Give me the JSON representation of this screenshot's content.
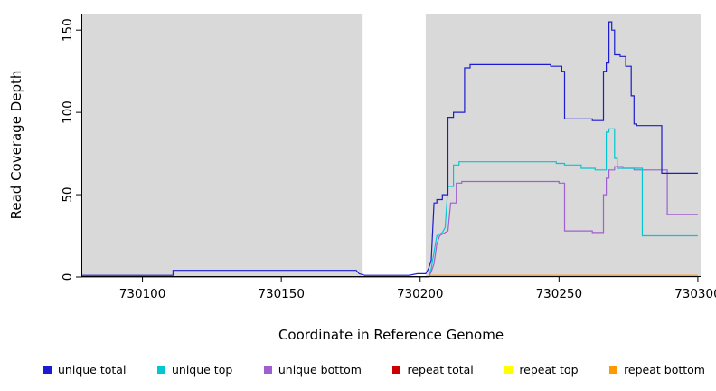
{
  "chart": {
    "type": "line",
    "title": "",
    "xlabel": "Coordinate in Reference Genome",
    "ylabel": "Read Coverage Depth",
    "x_domain": [
      730078,
      730301
    ],
    "y_domain": [
      0,
      160
    ],
    "x_ticks": [
      730100,
      730150,
      730200,
      730250,
      730300
    ],
    "y_ticks": [
      0,
      50,
      100,
      150
    ],
    "plot_background": "#ffffff",
    "grid": false,
    "shaded_regions": [
      {
        "x_start": 730078,
        "x_end": 730179,
        "color": "#d9d9d9"
      },
      {
        "x_start": 730202,
        "x_end": 730301,
        "color": "#d9d9d9"
      }
    ],
    "top_border_segment": [
      730179,
      730202
    ],
    "series": [
      {
        "name": "repeat total",
        "color": "#cc0000",
        "points": [
          [
            730078,
            0
          ],
          [
            730300,
            0
          ]
        ]
      },
      {
        "name": "repeat top",
        "color": "#ffff00",
        "points": [
          [
            730078,
            0
          ],
          [
            730300,
            0
          ]
        ]
      },
      {
        "name": "repeat bottom",
        "color": "#ff9900",
        "points": [
          [
            730078,
            0
          ],
          [
            730202,
            0
          ],
          [
            730204,
            1
          ],
          [
            730300,
            1
          ]
        ]
      },
      {
        "name": "unique bottom",
        "color": "#a05fd0",
        "points": [
          [
            730078,
            0
          ],
          [
            730203,
            0
          ],
          [
            730204,
            3
          ],
          [
            730205,
            8
          ],
          [
            730206,
            20
          ],
          [
            730207,
            25
          ],
          [
            730209,
            27
          ],
          [
            730210,
            28
          ],
          [
            730211,
            45
          ],
          [
            730213,
            45
          ],
          [
            730213,
            57
          ],
          [
            730215,
            57
          ],
          [
            730215,
            58
          ],
          [
            730250,
            58
          ],
          [
            730250,
            57
          ],
          [
            730252,
            57
          ],
          [
            730252,
            28
          ],
          [
            730262,
            28
          ],
          [
            730262,
            27
          ],
          [
            730266,
            27
          ],
          [
            730266,
            50
          ],
          [
            730267,
            50
          ],
          [
            730267,
            60
          ],
          [
            730268,
            60
          ],
          [
            730268,
            65
          ],
          [
            730270,
            65
          ],
          [
            730270,
            67
          ],
          [
            730273,
            67
          ],
          [
            730273,
            66
          ],
          [
            730277,
            66
          ],
          [
            730277,
            65
          ],
          [
            730289,
            65
          ],
          [
            730289,
            38
          ],
          [
            730300,
            38
          ]
        ]
      },
      {
        "name": "unique top",
        "color": "#00c8d2",
        "points": [
          [
            730078,
            0
          ],
          [
            730203,
            0
          ],
          [
            730204,
            5
          ],
          [
            730205,
            15
          ],
          [
            730206,
            25
          ],
          [
            730208,
            27
          ],
          [
            730209,
            30
          ],
          [
            730210,
            55
          ],
          [
            730212,
            55
          ],
          [
            730212,
            68
          ],
          [
            730214,
            68
          ],
          [
            730214,
            70
          ],
          [
            730249,
            70
          ],
          [
            730249,
            69
          ],
          [
            730252,
            69
          ],
          [
            730252,
            68
          ],
          [
            730258,
            68
          ],
          [
            730258,
            66
          ],
          [
            730263,
            66
          ],
          [
            730263,
            65
          ],
          [
            730267,
            65
          ],
          [
            730267,
            88
          ],
          [
            730268,
            88
          ],
          [
            730268,
            90
          ],
          [
            730270,
            90
          ],
          [
            730270,
            72
          ],
          [
            730271,
            72
          ],
          [
            730271,
            66
          ],
          [
            730280,
            66
          ],
          [
            730280,
            25
          ],
          [
            730300,
            25
          ]
        ]
      },
      {
        "name": "unique total",
        "color": "#1c1cce",
        "points": [
          [
            730078,
            1
          ],
          [
            730111,
            1
          ],
          [
            730111,
            4
          ],
          [
            730177,
            4
          ],
          [
            730178,
            2
          ],
          [
            730180,
            1
          ],
          [
            730196,
            1
          ],
          [
            730199,
            2
          ],
          [
            730202,
            2
          ],
          [
            730203,
            5
          ],
          [
            730204,
            10
          ],
          [
            730205,
            45
          ],
          [
            730206,
            45
          ],
          [
            730206,
            47
          ],
          [
            730208,
            47
          ],
          [
            730208,
            50
          ],
          [
            730210,
            50
          ],
          [
            730210,
            97
          ],
          [
            730212,
            97
          ],
          [
            730212,
            100
          ],
          [
            730216,
            100
          ],
          [
            730216,
            127
          ],
          [
            730218,
            127
          ],
          [
            730218,
            129
          ],
          [
            730247,
            129
          ],
          [
            730247,
            128
          ],
          [
            730251,
            128
          ],
          [
            730251,
            125
          ],
          [
            730252,
            125
          ],
          [
            730252,
            96
          ],
          [
            730262,
            96
          ],
          [
            730262,
            95
          ],
          [
            730266,
            95
          ],
          [
            730266,
            125
          ],
          [
            730267,
            125
          ],
          [
            730267,
            130
          ],
          [
            730268,
            130
          ],
          [
            730268,
            155
          ],
          [
            730269,
            155
          ],
          [
            730269,
            150
          ],
          [
            730270,
            150
          ],
          [
            730270,
            135
          ],
          [
            730272,
            135
          ],
          [
            730272,
            134
          ],
          [
            730274,
            134
          ],
          [
            730274,
            128
          ],
          [
            730276,
            128
          ],
          [
            730276,
            110
          ],
          [
            730277,
            110
          ],
          [
            730277,
            93
          ],
          [
            730278,
            93
          ],
          [
            730278,
            92
          ],
          [
            730287,
            92
          ],
          [
            730287,
            63
          ],
          [
            730300,
            63
          ]
        ]
      }
    ]
  },
  "legend": {
    "items": [
      {
        "label": "unique total",
        "color": "#1c1cce"
      },
      {
        "label": "unique top",
        "color": "#00c8d2"
      },
      {
        "label": "unique bottom",
        "color": "#a05fd0"
      },
      {
        "label": "repeat total",
        "color": "#cc0000"
      },
      {
        "label": "repeat top",
        "color": "#ffff00"
      },
      {
        "label": "repeat bottom",
        "color": "#ff9900"
      }
    ]
  }
}
